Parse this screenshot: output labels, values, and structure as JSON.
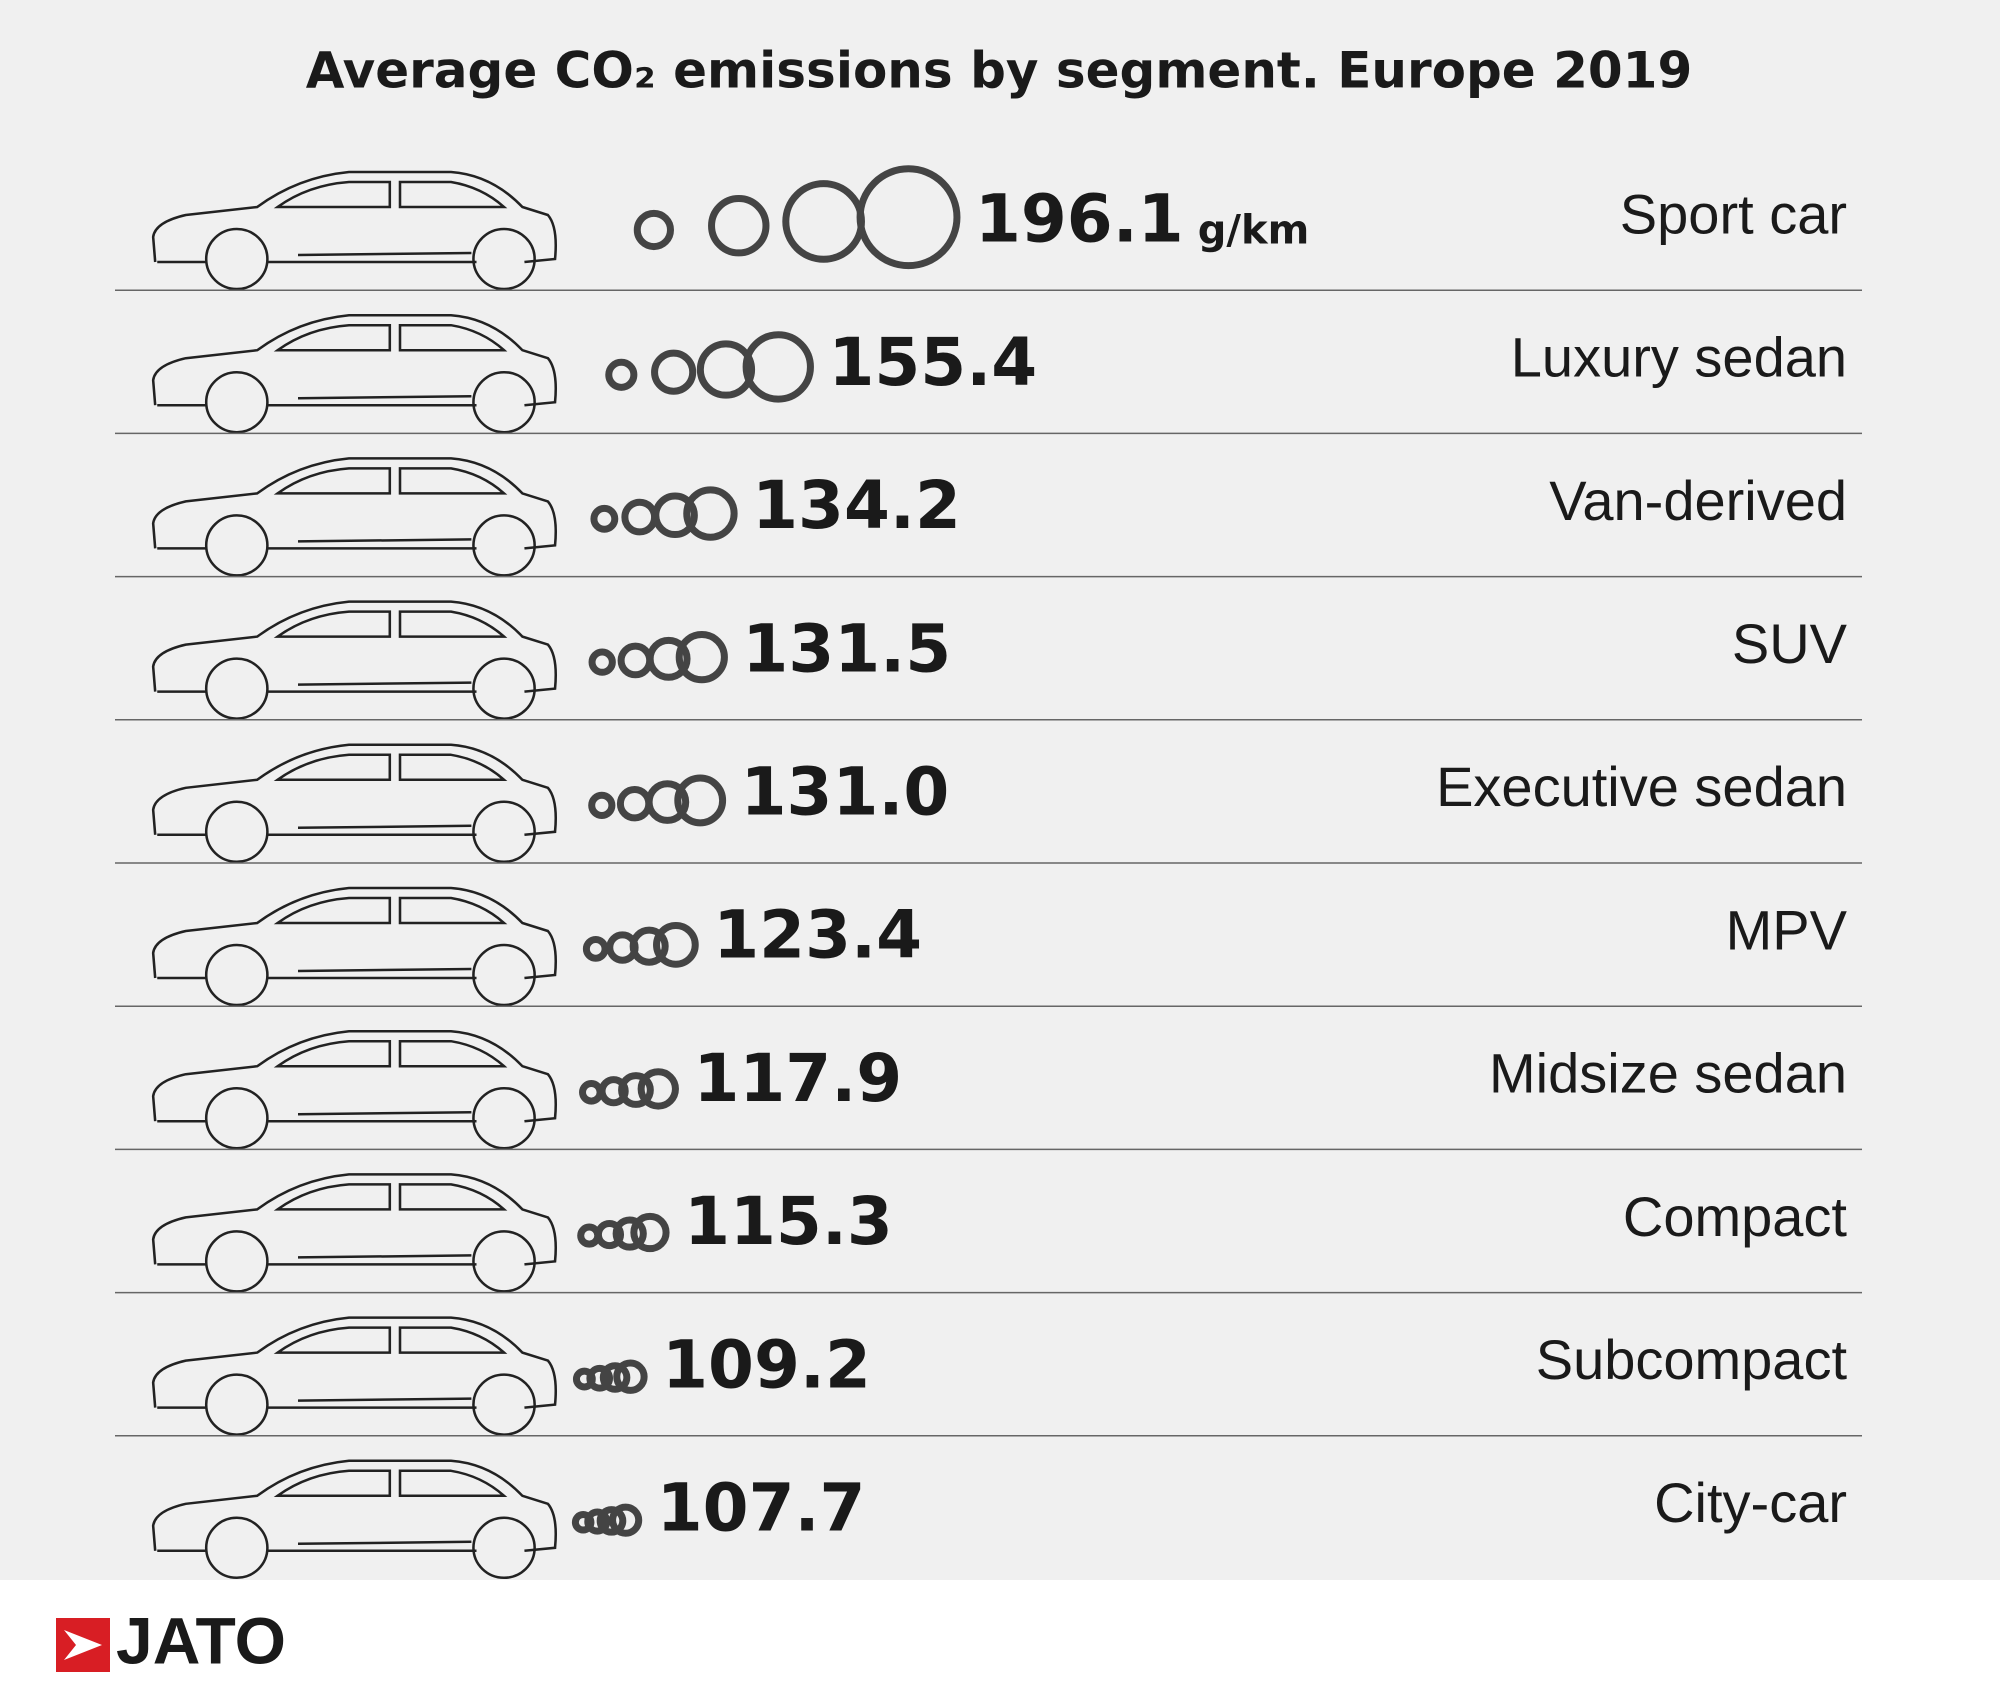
{
  "chart_data": {
    "type": "pictorial",
    "title": "Average CO₂ emissions by segment. Europe 2019",
    "unit": "g/km",
    "categories": [
      "Sport car",
      "Luxury sedan",
      "Van-derived",
      "SUV",
      "Executive sedan",
      "MPV",
      "Midsize sedan",
      "Compact",
      "Subcompact",
      "City-car"
    ],
    "values": [
      196.1,
      155.4,
      134.2,
      131.5,
      131.0,
      123.4,
      117.9,
      115.3,
      109.2,
      107.7
    ],
    "value_labels": [
      "196.1",
      "155.4",
      "134.2",
      "131.5",
      "131.0",
      "123.4",
      "117.9",
      "115.3",
      "109.2",
      "107.7"
    ],
    "logo": "JATO"
  }
}
